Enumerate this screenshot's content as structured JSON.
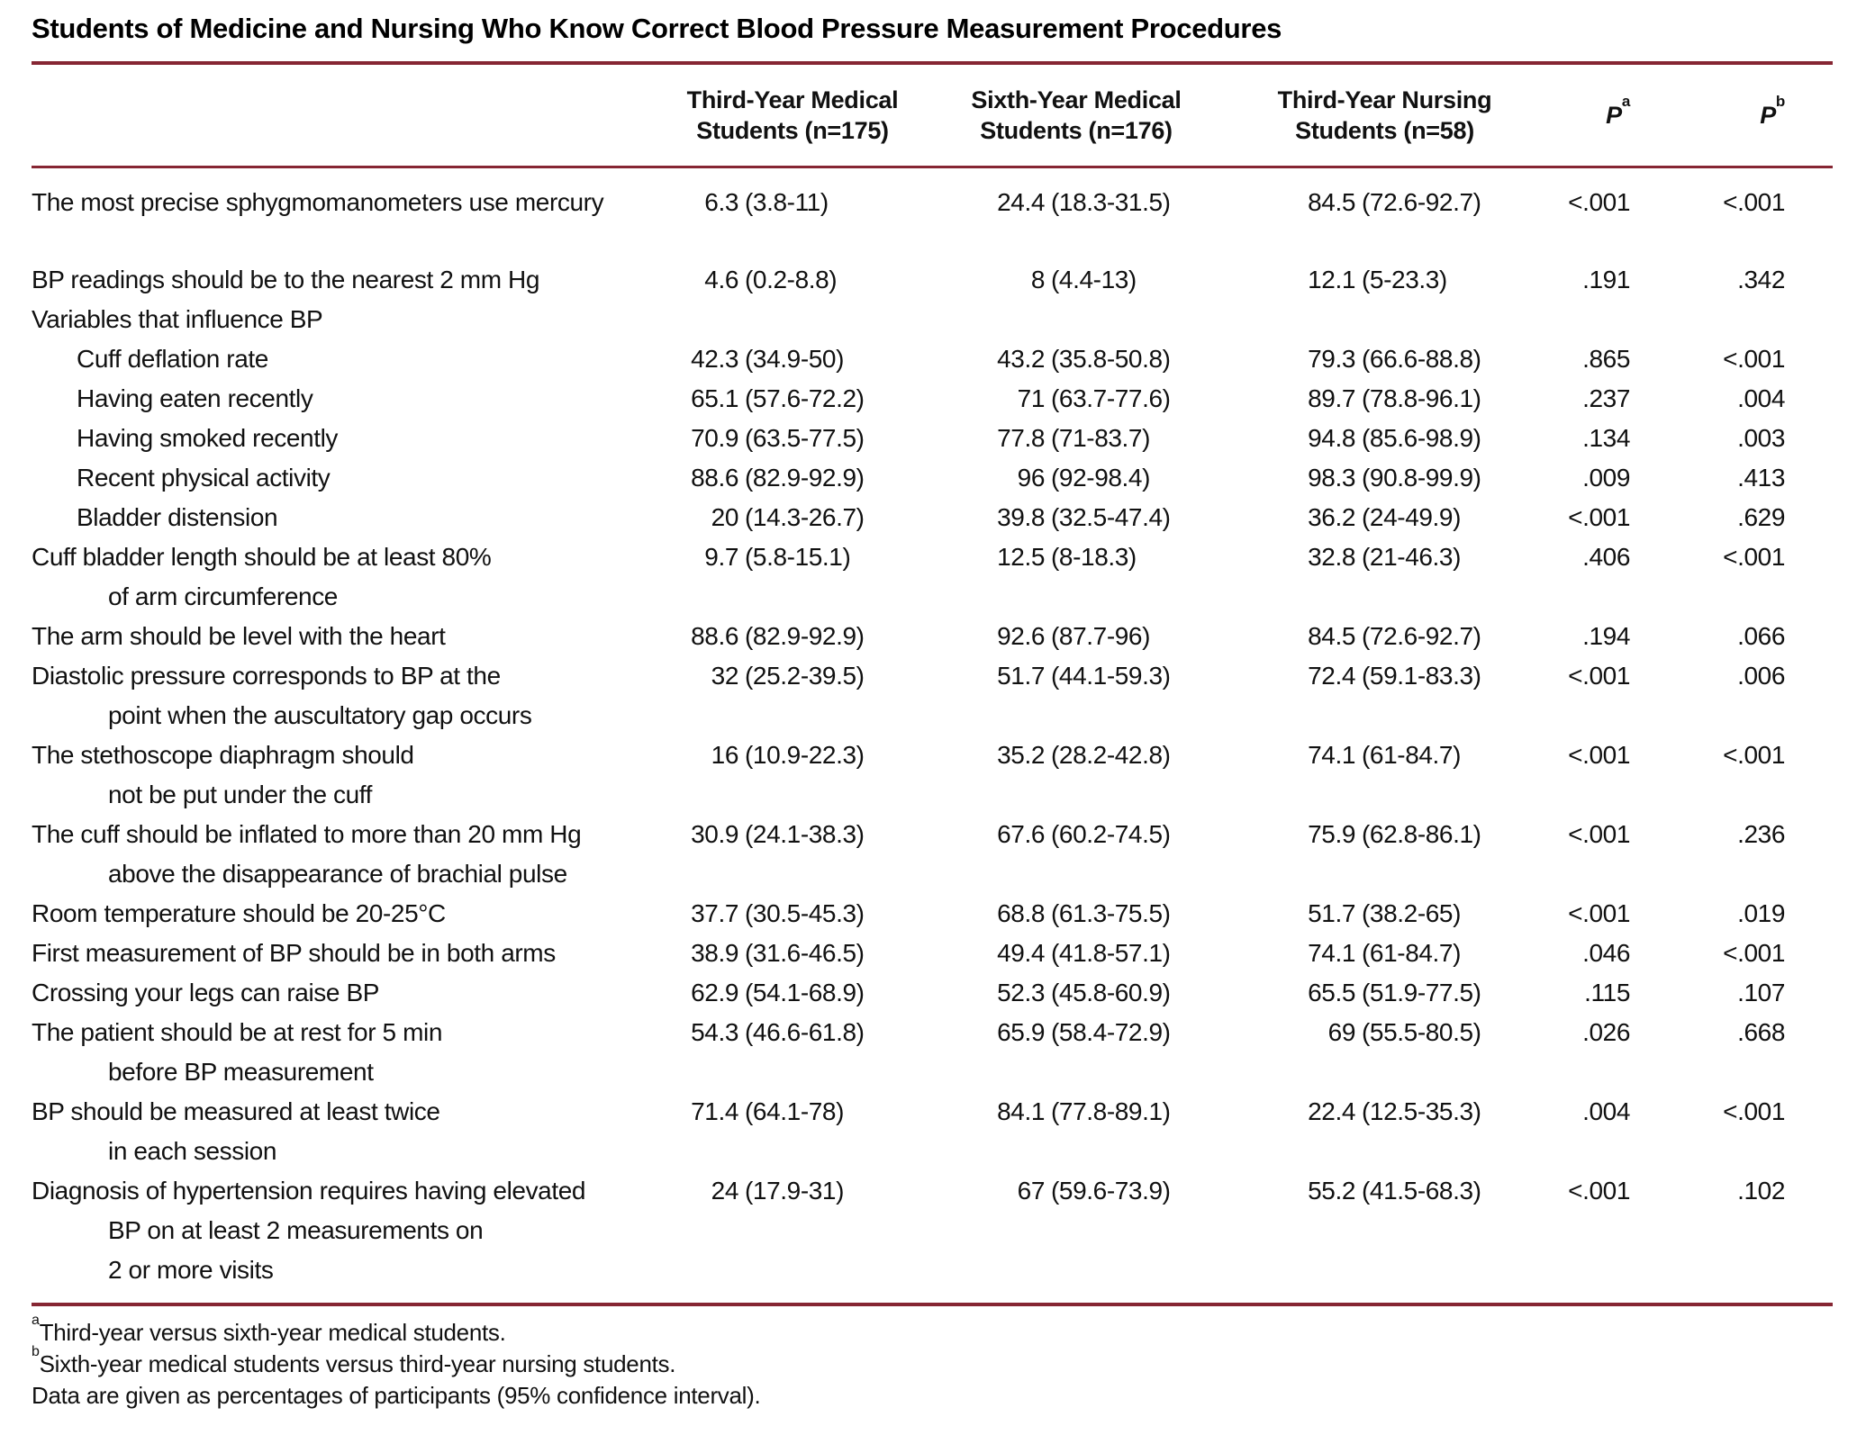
{
  "title": "Students of Medicine and Nursing Who Know Correct Blood Pressure Measurement Procedures",
  "colors": {
    "rule": "#862633",
    "text": "#111111"
  },
  "columns": {
    "col2": [
      "Third-Year Medical",
      "Students (n=175)"
    ],
    "col3": [
      "Sixth-Year Medical",
      "Students (n=176)"
    ],
    "col4": [
      "Third-Year Nursing",
      "Students (n=58)"
    ],
    "p_a": {
      "base": "P",
      "sup": "a"
    },
    "p_b": {
      "base": "P",
      "sup": "b"
    }
  },
  "rows": [
    {
      "lines": [
        "The most precise sphygmomanometers use mercury"
      ],
      "indent": false,
      "values": [
        "6.3 (3.8-11)",
        "24.4 (18.3-31.5)",
        "84.5 (72.6-92.7)",
        "<.001",
        "<.001"
      ],
      "spacer_after": true
    },
    {
      "lines": [
        "BP readings should be to the nearest 2 mm Hg"
      ],
      "indent": false,
      "values": [
        "4.6 (0.2-8.8)",
        "8 (4.4-13)",
        "12.1 (5-23.3)",
        ".191",
        ".342"
      ]
    },
    {
      "lines": [
        "Variables that influence BP"
      ],
      "indent": false,
      "values": null
    },
    {
      "lines": [
        "Cuff deflation rate"
      ],
      "indent": true,
      "values": [
        "42.3 (34.9-50)",
        "43.2 (35.8-50.8)",
        "79.3 (66.6-88.8)",
        ".865",
        "<.001"
      ]
    },
    {
      "lines": [
        "Having eaten recently"
      ],
      "indent": true,
      "values": [
        "65.1 (57.6-72.2)",
        "71 (63.7-77.6)",
        "89.7 (78.8-96.1)",
        ".237",
        ".004"
      ]
    },
    {
      "lines": [
        "Having smoked recently"
      ],
      "indent": true,
      "values": [
        "70.9 (63.5-77.5)",
        "77.8 (71-83.7)",
        "94.8 (85.6-98.9)",
        ".134",
        ".003"
      ]
    },
    {
      "lines": [
        "Recent physical activity"
      ],
      "indent": true,
      "values": [
        "88.6 (82.9-92.9)",
        "96 (92-98.4)",
        "98.3 (90.8-99.9)",
        ".009",
        ".413"
      ]
    },
    {
      "lines": [
        "Bladder distension"
      ],
      "indent": true,
      "values": [
        "20 (14.3-26.7)",
        "39.8 (32.5-47.4)",
        "36.2 (24-49.9)",
        "<.001",
        ".629"
      ]
    },
    {
      "lines": [
        "Cuff bladder length should be at least 80%",
        "of arm circumference"
      ],
      "indent": false,
      "values": [
        "9.7 (5.8-15.1)",
        "12.5 (8-18.3)",
        "32.8 (21-46.3)",
        ".406",
        "<.001"
      ]
    },
    {
      "lines": [
        "The arm should be level with the heart"
      ],
      "indent": false,
      "values": [
        "88.6 (82.9-92.9)",
        "92.6 (87.7-96)",
        "84.5 (72.6-92.7)",
        ".194",
        ".066"
      ]
    },
    {
      "lines": [
        "Diastolic pressure corresponds to BP at the",
        "point when the auscultatory gap occurs"
      ],
      "indent": false,
      "values": [
        "32 (25.2-39.5)",
        "51.7 (44.1-59.3)",
        "72.4 (59.1-83.3)",
        "<.001",
        ".006"
      ]
    },
    {
      "lines": [
        "The stethoscope diaphragm should",
        "not be put under the cuff"
      ],
      "indent": false,
      "values": [
        "16 (10.9-22.3)",
        "35.2 (28.2-42.8)",
        "74.1 (61-84.7)",
        "<.001",
        "<.001"
      ]
    },
    {
      "lines": [
        "The cuff should be inflated to more than 20 mm Hg",
        "above the disappearance of brachial pulse"
      ],
      "indent": false,
      "values": [
        "30.9 (24.1-38.3)",
        "67.6 (60.2-74.5)",
        "75.9 (62.8-86.1)",
        "<.001",
        ".236"
      ]
    },
    {
      "lines": [
        "Room temperature should be 20-25°C"
      ],
      "indent": false,
      "values": [
        "37.7 (30.5-45.3)",
        "68.8 (61.3-75.5)",
        "51.7 (38.2-65)",
        "<.001",
        ".019"
      ]
    },
    {
      "lines": [
        "First measurement of BP should be in both arms"
      ],
      "indent": false,
      "values": [
        "38.9 (31.6-46.5)",
        "49.4 (41.8-57.1)",
        "74.1 (61-84.7)",
        ".046",
        "<.001"
      ]
    },
    {
      "lines": [
        "Crossing your legs can raise BP"
      ],
      "indent": false,
      "values": [
        "62.9 (54.1-68.9)",
        "52.3 (45.8-60.9)",
        "65.5 (51.9-77.5)",
        ".115",
        ".107"
      ]
    },
    {
      "lines": [
        "The patient should be at rest for 5 min",
        "before BP measurement"
      ],
      "indent": false,
      "values": [
        "54.3 (46.6-61.8)",
        "65.9 (58.4-72.9)",
        "69 (55.5-80.5)",
        ".026",
        ".668"
      ]
    },
    {
      "lines": [
        "BP should be measured at least twice",
        "in each session"
      ],
      "indent": false,
      "values": [
        "71.4 (64.1-78)",
        "84.1 (77.8-89.1)",
        "22.4 (12.5-35.3)",
        ".004",
        "<.001"
      ]
    },
    {
      "lines": [
        "Diagnosis of hypertension requires having elevated",
        "BP on at least 2 measurements on",
        "2 or more visits"
      ],
      "indent": false,
      "values": [
        "24 (17.9-31)",
        "67 (59.6-73.9)",
        "55.2 (41.5-68.3)",
        "<.001",
        ".102"
      ]
    }
  ],
  "footnotes": [
    {
      "sup": "a",
      "text": "Third-year versus sixth-year medical students."
    },
    {
      "sup": "b",
      "text": "Sixth-year medical students versus third-year nursing students."
    },
    {
      "sup": "",
      "text": "Data are given as percentages of participants (95% confidence interval)."
    }
  ]
}
